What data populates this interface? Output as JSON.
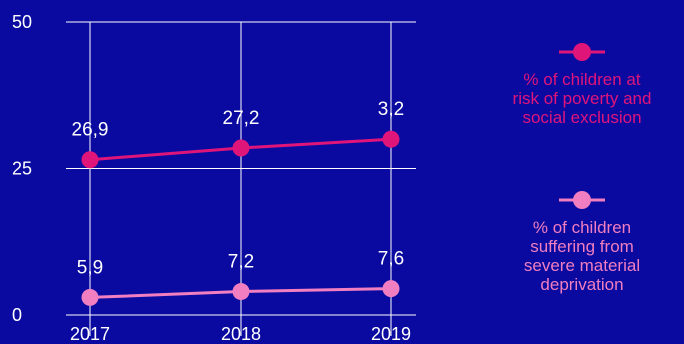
{
  "chart_data": {
    "type": "line",
    "categories": [
      "2017",
      "2018",
      "2019"
    ],
    "yticks": [
      "0",
      "25",
      "50"
    ],
    "ylim": [
      0,
      50
    ],
    "grid": true,
    "legend_position": "right",
    "series": [
      {
        "name": "% of children at risk of poverty and social exclusion",
        "values": [
          26.9,
          27.2,
          3.2
        ],
        "plot_values": [
          26.5,
          28.5,
          30.0
        ],
        "labels": [
          "26,9",
          "27,2",
          "3,2"
        ],
        "color": "#e0157a"
      },
      {
        "name": "% of children suffering from severe material deprivation",
        "values": [
          5.9,
          7.2,
          7.6
        ],
        "plot_values": [
          3.0,
          4.0,
          4.5
        ],
        "labels": [
          "5,9",
          "7,2",
          "7,6"
        ],
        "color": "#f07ec0"
      }
    ]
  },
  "legend": {
    "items": [
      {
        "lines": [
          "% of children at",
          "risk of poverty and",
          "social exclusion"
        ],
        "color": "#e0157a"
      },
      {
        "lines": [
          "% of children",
          "suffering from",
          "severe material",
          "deprivation"
        ],
        "color": "#f07ec0"
      }
    ]
  }
}
